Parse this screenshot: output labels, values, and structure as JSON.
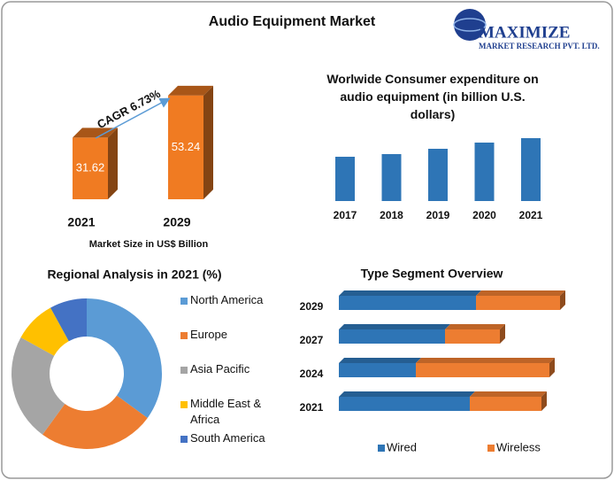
{
  "header": {
    "title": "Audio Equipment Market",
    "logo_name": "MAXIMIZE",
    "logo_sub": "MARKET RESEARCH PVT. LTD."
  },
  "chart_data": [
    {
      "type": "bar",
      "3d": true,
      "color": "#f07b22",
      "categories": [
        "2021",
        "2029"
      ],
      "values": [
        31.62,
        53.24
      ],
      "ylim": [
        0,
        60
      ],
      "x_label": "Market Size in US$ Billion",
      "annotation": "CAGR 6.73%"
    },
    {
      "type": "bar",
      "title": "Worlwide Consumer expenditure on audio equipment (in billion U.S. dollars)",
      "color": "#2e75b6",
      "categories": [
        "2017",
        "2018",
        "2019",
        "2020",
        "2021"
      ],
      "values": [
        50,
        53,
        59,
        66,
        71
      ],
      "ylim": [
        0,
        80
      ]
    },
    {
      "type": "donut",
      "title": "Regional Analysis in 2021 (%)",
      "categories": [
        "North America",
        "Europe",
        "Asia Pacific",
        "Middle East & Africa",
        "South America"
      ],
      "values": [
        35,
        25,
        23,
        9,
        8
      ],
      "colors": [
        "#5b9bd5",
        "#ed7d31",
        "#a5a5a5",
        "#ffc000",
        "#4472c4"
      ]
    },
    {
      "type": "stacked-hbar",
      "title": "Type Segment Overview",
      "categories": [
        "2029",
        "2027",
        "2024",
        "2021"
      ],
      "xlim": [
        0,
        26
      ],
      "series": [
        {
          "name": "Wired",
          "color": "#2e75b6",
          "values": [
            15.5,
            12,
            8.7,
            14.8
          ]
        },
        {
          "name": "Wireless",
          "color": "#ed7d31",
          "values": [
            9.5,
            6.2,
            15.1,
            8.1
          ]
        }
      ]
    }
  ]
}
